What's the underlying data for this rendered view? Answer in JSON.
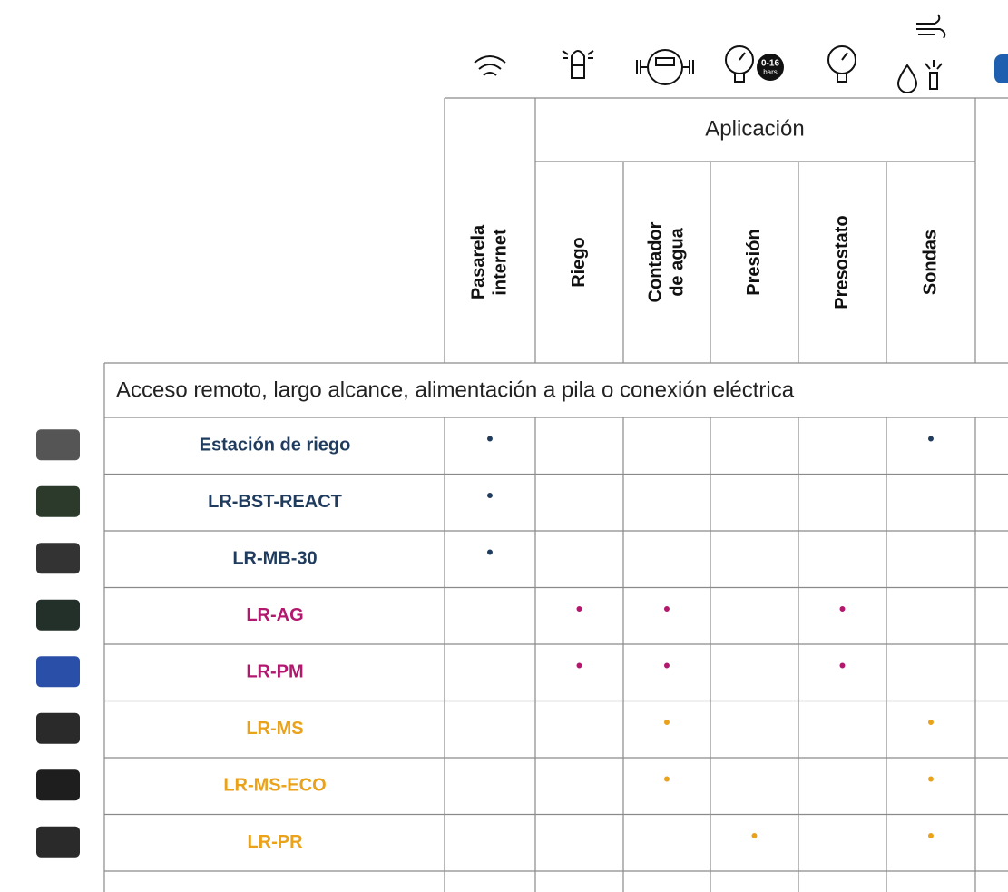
{
  "icon_labels": {
    "range": "0-16",
    "unit": "bars"
  },
  "header": {
    "group": "Aplicación"
  },
  "columns": [
    {
      "lines": [
        "Pasarela",
        "internet"
      ]
    },
    {
      "lines": [
        "Riego"
      ]
    },
    {
      "lines": [
        "Contador",
        "de agua"
      ]
    },
    {
      "lines": [
        "Presión"
      ]
    },
    {
      "lines": [
        "Presostato"
      ]
    },
    {
      "lines": [
        "Sondas"
      ]
    }
  ],
  "section": {
    "title": "Acceso remoto, largo alcance, alimentación a pila o conexión eléctrica"
  },
  "rows": [
    {
      "name": "Estación de riego",
      "color": "#1f3b5e",
      "cells": [
        "•",
        null,
        null,
        null,
        null,
        "•"
      ]
    },
    {
      "name": "LR-BST-REACT",
      "color": "#1f3b5e",
      "cells": [
        "•",
        null,
        null,
        null,
        null,
        null
      ]
    },
    {
      "name": "LR-MB-30",
      "color": "#1f3b5e",
      "cells": [
        "•",
        null,
        null,
        null,
        null,
        null
      ]
    },
    {
      "name": "LR-AG",
      "color": "#b3186f",
      "cells": [
        null,
        "•",
        "•",
        null,
        "•",
        null
      ]
    },
    {
      "name": "LR-PM",
      "color": "#b3186f",
      "cells": [
        null,
        "•",
        "•",
        null,
        "•",
        null
      ]
    },
    {
      "name": "LR-MS",
      "color": "#e9a21a",
      "cells": [
        null,
        null,
        "•",
        null,
        null,
        "•"
      ]
    },
    {
      "name": "LR-MS-ECO",
      "color": "#e9a21a",
      "cells": [
        null,
        null,
        "•",
        null,
        null,
        "•"
      ]
    },
    {
      "name": "LR-PR",
      "color": "#e9a21a",
      "cells": [
        null,
        null,
        null,
        "•",
        null,
        "•"
      ]
    }
  ]
}
